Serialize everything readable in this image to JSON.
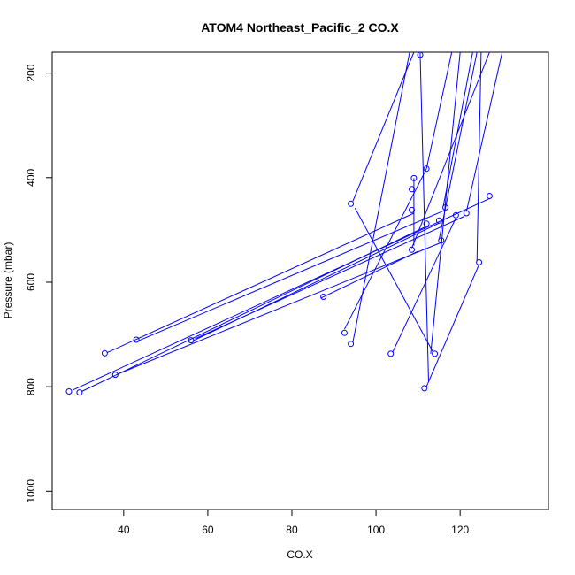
{
  "chart_data": {
    "type": "line",
    "title": "ATOM4 Northeast_Pacific_2 CO.X",
    "xlabel": "CO.X",
    "ylabel": "Pressure (mbar)",
    "xlim": [
      23,
      141
    ],
    "ylim": [
      1035,
      160
    ],
    "y_reversed": true,
    "x_ticks": [
      40,
      60,
      80,
      100,
      120
    ],
    "y_ticks": [
      200,
      400,
      600,
      800,
      1000
    ],
    "grid": false,
    "legend": "none",
    "color": "#0000ff",
    "marker": "open-circle",
    "points": [
      {
        "x": 110.5,
        "y": 165
      },
      {
        "x": 112,
        "y": 383
      },
      {
        "x": 109,
        "y": 401
      },
      {
        "x": 108.5,
        "y": 422
      },
      {
        "x": 94,
        "y": 450
      },
      {
        "x": 127,
        "y": 435
      },
      {
        "x": 116.5,
        "y": 457
      },
      {
        "x": 108.5,
        "y": 462
      },
      {
        "x": 121.5,
        "y": 468
      },
      {
        "x": 119,
        "y": 472
      },
      {
        "x": 115,
        "y": 482
      },
      {
        "x": 112,
        "y": 488
      },
      {
        "x": 115.5,
        "y": 520
      },
      {
        "x": 108.5,
        "y": 538
      },
      {
        "x": 124.5,
        "y": 562
      },
      {
        "x": 87.5,
        "y": 628
      },
      {
        "x": 92.5,
        "y": 697
      },
      {
        "x": 43,
        "y": 710
      },
      {
        "x": 56,
        "y": 711
      },
      {
        "x": 94,
        "y": 718
      },
      {
        "x": 35.5,
        "y": 736
      },
      {
        "x": 103.5,
        "y": 737
      },
      {
        "x": 114,
        "y": 737
      },
      {
        "x": 38,
        "y": 777
      },
      {
        "x": 111.5,
        "y": 803
      },
      {
        "x": 27,
        "y": 809
      },
      {
        "x": 29.5,
        "y": 811
      }
    ],
    "segments": [
      [
        [
          120,
          160
        ],
        [
          113,
          737
        ]
      ],
      [
        [
          110.5,
          160
        ],
        [
          110.5,
          165
        ]
      ],
      [
        [
          110.5,
          165
        ],
        [
          112.5,
          790
        ]
      ],
      [
        [
          118,
          160
        ],
        [
          112,
          383
        ]
      ],
      [
        [
          112,
          383
        ],
        [
          92.5,
          690
        ]
      ],
      [
        [
          108,
          160
        ],
        [
          94.5,
          715
        ]
      ],
      [
        [
          109,
          401
        ],
        [
          109,
          530
        ]
      ],
      [
        [
          109,
          160
        ],
        [
          94.5,
          445
        ]
      ],
      [
        [
          95,
          458
        ],
        [
          113.5,
          733
        ]
      ],
      [
        [
          127,
          440
        ],
        [
          28,
          806
        ]
      ],
      [
        [
          116.5,
          462
        ],
        [
          43.5,
          712
        ]
      ],
      [
        [
          109,
          468
        ],
        [
          36,
          735
        ]
      ],
      [
        [
          121,
          474
        ],
        [
          57,
          708
        ]
      ],
      [
        [
          119,
          477
        ],
        [
          104,
          733
        ]
      ],
      [
        [
          115,
          487
        ],
        [
          56.5,
          712
        ]
      ],
      [
        [
          112,
          493
        ],
        [
          30,
          809
        ]
      ],
      [
        [
          115.5,
          524
        ],
        [
          38.5,
          776
        ]
      ],
      [
        [
          110,
          541
        ],
        [
          87,
          630
        ]
      ],
      [
        [
          124.5,
          566
        ],
        [
          112,
          800
        ]
      ],
      [
        [
          125,
          160
        ],
        [
          124,
          560
        ]
      ],
      [
        [
          123,
          160
        ],
        [
          116,
          455
        ]
      ],
      [
        [
          130,
          160
        ],
        [
          121.5,
          465
        ]
      ],
      [
        [
          124,
          160
        ],
        [
          115,
          518
        ]
      ],
      [
        [
          127,
          160
        ],
        [
          108.5,
          535
        ]
      ]
    ]
  }
}
